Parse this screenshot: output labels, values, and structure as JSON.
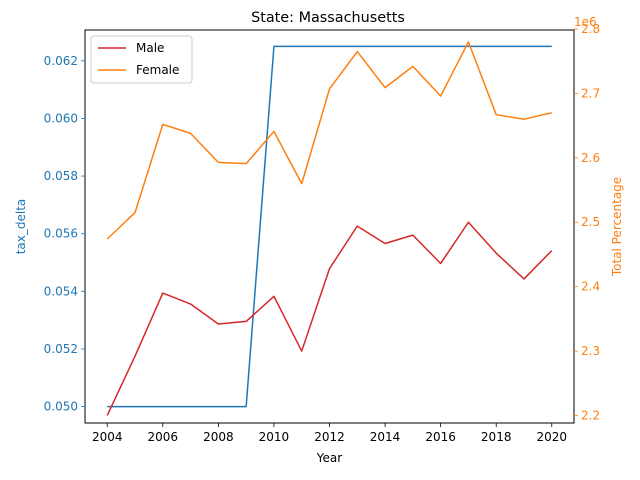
{
  "chart_data": {
    "type": "line",
    "title": "State: Massachusetts",
    "xlabel": "Year",
    "ylabel_left": "tax_delta",
    "ylabel_right": "Total Percentage",
    "right_axis_offset_label": "1e6",
    "x": [
      2004,
      2005,
      2006,
      2007,
      2008,
      2009,
      2010,
      2011,
      2012,
      2013,
      2014,
      2015,
      2016,
      2017,
      2018,
      2019,
      2020
    ],
    "xticks": [
      "2004",
      "2006",
      "2008",
      "2010",
      "2012",
      "2014",
      "2016",
      "2018",
      "2020"
    ],
    "xtick_values": [
      2004,
      2006,
      2008,
      2010,
      2012,
      2014,
      2016,
      2018,
      2020
    ],
    "xlim": [
      2003.2,
      2020.8
    ],
    "left_axis": {
      "ylim": [
        0.04943,
        0.06307
      ],
      "ticks": [
        "0.050",
        "0.052",
        "0.054",
        "0.056",
        "0.058",
        "0.060",
        "0.062"
      ],
      "tick_values": [
        0.05,
        0.052,
        0.054,
        0.056,
        0.058,
        0.06,
        0.062
      ]
    },
    "right_axis": {
      "ylim": [
        2.1883,
        2.7985
      ],
      "ticks": [
        "2.2",
        "2.3",
        "2.4",
        "2.5",
        "2.6",
        "2.7",
        "2.8"
      ],
      "tick_values": [
        2.2,
        2.3,
        2.4,
        2.5,
        2.6,
        2.7,
        2.8
      ]
    },
    "series": [
      {
        "key": "tax_delta",
        "axis": "left",
        "color": "#1f77b4",
        "values": [
          0.05,
          0.05,
          0.05,
          0.05,
          0.05,
          0.05,
          0.0625,
          0.0625,
          0.0625,
          0.0625,
          0.0625,
          0.0625,
          0.0625,
          0.0625,
          0.0625,
          0.0625,
          0.0625
        ]
      },
      {
        "name": "Male",
        "axis": "right",
        "color": "#d62728",
        "values": [
          2.2,
          2.292,
          2.39,
          2.373,
          2.342,
          2.346,
          2.385,
          2.3,
          2.428,
          2.494,
          2.467,
          2.48,
          2.436,
          2.5,
          2.452,
          2.412,
          2.456
        ]
      },
      {
        "name": "Female",
        "axis": "right",
        "color": "#ff7f0e",
        "values": [
          2.474,
          2.515,
          2.652,
          2.638,
          2.593,
          2.591,
          2.641,
          2.56,
          2.707,
          2.765,
          2.709,
          2.742,
          2.696,
          2.78,
          2.667,
          2.66,
          2.67
        ]
      }
    ],
    "legend": {
      "placement": "top-left",
      "entries": [
        "Male",
        "Female"
      ]
    },
    "grid": false
  }
}
